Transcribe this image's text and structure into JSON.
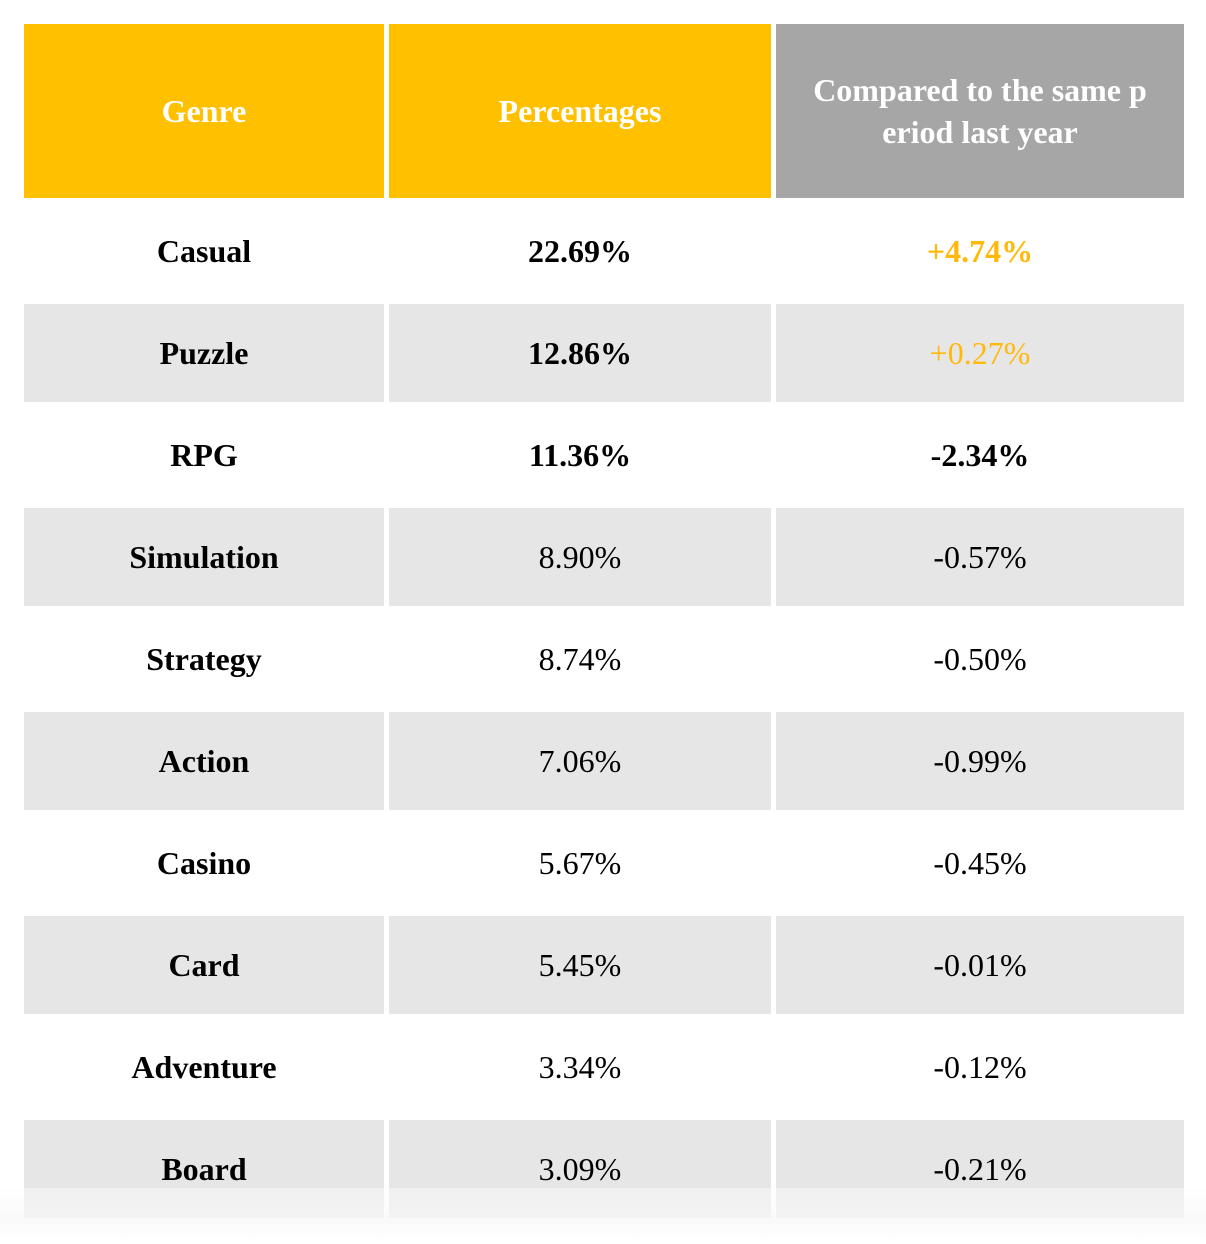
{
  "chart_data": {
    "type": "table",
    "columns": [
      {
        "label": "Genre"
      },
      {
        "label": "Percentages"
      },
      {
        "label": "Compared to the same p\neriod last year",
        "full_label": "Compared to the same period last year"
      }
    ],
    "rows": [
      {
        "genre": "Casual",
        "percentage": "22.69%",
        "change": "+4.74%",
        "percentage_bold": true,
        "change_bold": true
      },
      {
        "genre": "Puzzle",
        "percentage": "12.86%",
        "change": "+0.27%",
        "percentage_bold": true,
        "change_bold": false
      },
      {
        "genre": "RPG",
        "percentage": "11.36%",
        "change": "-2.34%",
        "percentage_bold": true,
        "change_bold": true
      },
      {
        "genre": "Simulation",
        "percentage": "8.90%",
        "change": "-0.57%",
        "percentage_bold": false,
        "change_bold": false
      },
      {
        "genre": "Strategy",
        "percentage": "8.74%",
        "change": "-0.50%",
        "percentage_bold": false,
        "change_bold": false
      },
      {
        "genre": "Action",
        "percentage": "7.06%",
        "change": "-0.99%",
        "percentage_bold": false,
        "change_bold": false
      },
      {
        "genre": "Casino",
        "percentage": "5.67%",
        "change": "-0.45%",
        "percentage_bold": false,
        "change_bold": false
      },
      {
        "genre": "Card",
        "percentage": "5.45%",
        "change": "-0.01%",
        "percentage_bold": false,
        "change_bold": false
      },
      {
        "genre": "Adventure",
        "percentage": "3.34%",
        "change": "-0.12%",
        "percentage_bold": false,
        "change_bold": false
      },
      {
        "genre": "Board",
        "percentage": "3.09%",
        "change": "-0.21%",
        "percentage_bold": false,
        "change_bold": false
      }
    ]
  },
  "colors": {
    "header_yellow": "#FFC000",
    "header_gray": "#A6A6A6",
    "row_gray": "#E7E6E6",
    "positive_orange": "#FFB90B",
    "header_text": "#FFFFFF",
    "text_black": "#000000"
  }
}
